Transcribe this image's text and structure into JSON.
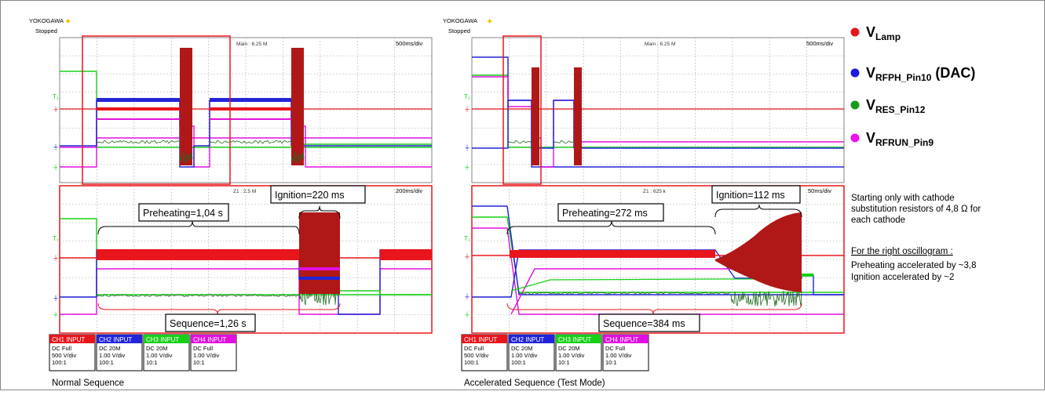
{
  "left_scope": {
    "brand": "YOKOGAWA",
    "status": "Stopped",
    "main_readout": "Main : 6.25 M",
    "main_timebase": "500ms/div",
    "zoom_readout": "Z1 : 2.5 M",
    "zoom_timebase": "200ms/div",
    "caption": "Normal Sequence",
    "callouts": {
      "preheating": "Preheating=1,04 s",
      "ignition": "Ignition=220 ms",
      "sequence": "Sequence=1,26 s"
    }
  },
  "right_scope": {
    "brand": "YOKOGAWA",
    "status": "Stopped",
    "main_readout": "Main : 6.25 M",
    "main_timebase": "500ms/div",
    "zoom_readout": "Z1 : 625 k",
    "zoom_timebase": "50ms/div",
    "caption": "Accelerated Sequence  (Test Mode)",
    "callouts": {
      "preheating": "Preheating=272 ms",
      "ignition": "Ignition=112 ms",
      "sequence": "Sequence=384 ms"
    }
  },
  "channel_settings": [
    {
      "header": "CH1 INPUT",
      "line1": "DC Full",
      "line2": "500 V/div",
      "line3": "100:1",
      "color": "#e8161c"
    },
    {
      "header": "CH2 INPUT",
      "line1": "DC 20M",
      "line2": "1.00 V/div",
      "line3": "100:1",
      "color": "#2323d8"
    },
    {
      "header": "CH3 INPUT",
      "line1": "DC 20M",
      "line2": "1.00 V/div",
      "line3": "10:1",
      "color": "#18d018"
    },
    {
      "header": "CH4 INPUT",
      "line1": "DC Full",
      "line2": "1.00 V/div",
      "line3": "10:1",
      "color": "#e010e0"
    }
  ],
  "legend": [
    {
      "main": "V",
      "sub": "Lamp",
      "suffix": "",
      "color": "#e8161c"
    },
    {
      "main": "V",
      "sub": "RFPH_Pin10",
      "suffix": " (DAC)",
      "color": "#1a1ae0"
    },
    {
      "main": "V",
      "sub": "RES_Pin12",
      "suffix": "",
      "color": "#1a9a1a"
    },
    {
      "main": "V",
      "sub": "RFRUN_Pin9",
      "suffix": "",
      "color": "#ee10ee"
    }
  ],
  "notes": {
    "line1": "Starting only with cathode",
    "line2": "substitution resistors of 4,8 Ω for",
    "line3": "each cathode",
    "heading": "For the right oscillogram :",
    "line4": "Preheating accelerated by ~3,8",
    "line5": "Ignition accelerated by ~2"
  },
  "chart_data": [
    {
      "type": "line",
      "title": "Normal Sequence",
      "series": [
        {
          "name": "VLamp",
          "color": "#e8161c"
        },
        {
          "name": "VRFPH_Pin10 (DAC)",
          "color": "#1a1ae0"
        },
        {
          "name": "VRES_Pin12",
          "color": "#1a9a1a"
        },
        {
          "name": "VRFRUN_Pin9",
          "color": "#ee10ee"
        }
      ],
      "preheating_s": 1.04,
      "ignition_ms": 220,
      "sequence_s": 1.26
    },
    {
      "type": "line",
      "title": "Accelerated Sequence (Test Mode)",
      "series": [
        {
          "name": "VLamp",
          "color": "#e8161c"
        },
        {
          "name": "VRFPH_Pin10 (DAC)",
          "color": "#1a1ae0"
        },
        {
          "name": "VRES_Pin12",
          "color": "#1a9a1a"
        },
        {
          "name": "VRFRUN_Pin9",
          "color": "#ee10ee"
        }
      ],
      "preheating_ms": 272,
      "ignition_ms": 112,
      "sequence_ms": 384
    }
  ]
}
